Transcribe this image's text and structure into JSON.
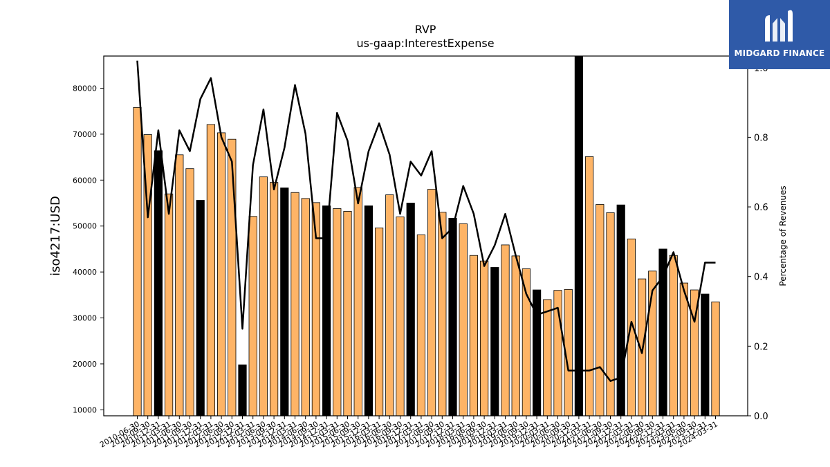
{
  "chart_data": {
    "type": "bar",
    "title": "RVP",
    "subtitle": "us-gaap:InterestExpense",
    "ylabel": "iso4217:USD",
    "y2label": "Percentage of Revenues",
    "ylim": [
      8700,
      87000
    ],
    "y2lim": [
      0,
      1.0333
    ],
    "yticks": [
      10000,
      20000,
      30000,
      40000,
      50000,
      60000,
      70000,
      80000
    ],
    "y2ticks": [
      0.0,
      0.2,
      0.4,
      0.6,
      0.8,
      1.0
    ],
    "categories": [
      "2010-06-30",
      "2010-09-30",
      "2010-12-31",
      "2011-03-31",
      "2011-06-30",
      "2011-09-30",
      "2011-12-31",
      "2012-03-31",
      "2012-06-30",
      "2012-09-30",
      "2012-12-31",
      "2013-03-31",
      "2013-06-30",
      "2013-09-30",
      "2013-12-31",
      "2014-03-31",
      "2014-06-30",
      "2014-09-30",
      "2014-12-31",
      "2015-03-31",
      "2015-06-30",
      "2015-09-30",
      "2015-12-31",
      "2016-03-31",
      "2016-06-30",
      "2016-09-30",
      "2016-12-31",
      "2017-03-31",
      "2017-06-30",
      "2017-09-30",
      "2017-12-31",
      "2018-03-31",
      "2018-06-30",
      "2018-09-30",
      "2018-12-31",
      "2019-03-31",
      "2019-06-30",
      "2019-09-30",
      "2019-12-31",
      "2020-03-31",
      "2020-06-30",
      "2020-09-30",
      "2020-12-31",
      "2021-03-31",
      "2021-06-30",
      "2021-09-30",
      "2021-12-31",
      "2022-03-31",
      "2022-06-30",
      "2022-09-30",
      "2022-12-31",
      "2023-03-31",
      "2023-06-30",
      "2023-09-30",
      "2023-12-31",
      "2024-03-31"
    ],
    "series": [
      {
        "type": "bar",
        "values": [
          75800,
          69900,
          66400,
          57000,
          65500,
          62500,
          55600,
          72100,
          70300,
          68900,
          19800,
          52100,
          60700,
          59500,
          58300,
          57300,
          56000,
          55100,
          54400,
          53800,
          53200,
          58400,
          54400,
          49600,
          56800,
          52000,
          55000,
          48100,
          58000,
          53000,
          51700,
          50500,
          43600,
          42400,
          41000,
          45900,
          43500,
          40700,
          36100,
          34000,
          36000,
          36200,
          87000,
          65100,
          54700,
          52900,
          54600,
          47200,
          38500,
          40200,
          45000,
          43600,
          37600,
          36100,
          35200,
          33500
        ],
        "highlight": [
          false,
          false,
          true,
          false,
          false,
          false,
          true,
          false,
          false,
          false,
          true,
          false,
          false,
          false,
          true,
          false,
          false,
          false,
          true,
          false,
          false,
          false,
          true,
          false,
          false,
          false,
          true,
          false,
          false,
          false,
          true,
          false,
          false,
          false,
          true,
          false,
          false,
          false,
          true,
          false,
          false,
          false,
          true,
          false,
          false,
          false,
          true,
          false,
          false,
          false,
          true,
          false,
          false,
          false,
          true,
          false
        ]
      },
      {
        "type": "line",
        "axis": "right",
        "values": [
          1.02,
          0.57,
          0.82,
          0.58,
          0.82,
          0.76,
          0.91,
          0.97,
          0.8,
          0.73,
          0.25,
          0.72,
          0.88,
          0.65,
          0.77,
          0.95,
          0.81,
          0.51,
          0.51,
          0.87,
          0.79,
          0.61,
          0.76,
          0.84,
          0.75,
          0.58,
          0.73,
          0.69,
          0.76,
          0.51,
          0.54,
          0.66,
          0.58,
          0.43,
          0.49,
          0.58,
          0.46,
          0.35,
          0.29,
          0.3,
          0.31,
          0.13,
          0.13,
          0.13,
          0.14,
          0.1,
          0.11,
          0.27,
          0.18,
          0.36,
          0.4,
          0.47,
          0.36,
          0.27,
          0.44,
          0.44
        ]
      }
    ],
    "colors": {
      "bar": "#feb466",
      "bar_highlight": "#000000",
      "line": "#000000"
    },
    "grid": false
  },
  "logo": {
    "name": "MIDGARD FINANCE",
    "icon": "midgard-logo-icon",
    "color": "#2f5aa8"
  }
}
